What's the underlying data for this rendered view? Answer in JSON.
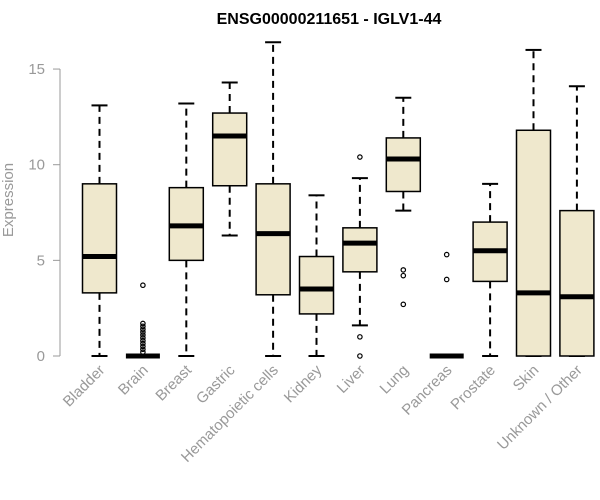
{
  "chart_data": {
    "type": "box",
    "title": "ENSG00000211651 - IGLV1-44",
    "ylabel": "Expression",
    "xlabel": "",
    "ylim": [
      0,
      15
    ],
    "yticks": [
      0,
      5,
      10,
      15
    ],
    "grid": false,
    "box_fill": "#EFE8CD",
    "categories": [
      "Bladder",
      "Brain",
      "Breast",
      "Gastric",
      "Hematopoietic cells",
      "Kidney",
      "Liver",
      "Lung",
      "Pancreas",
      "Prostate",
      "Skin",
      "Unknown / Other"
    ],
    "boxes": [
      {
        "category": "Bladder",
        "whisker_low": 0,
        "q1": 3.3,
        "median": 5.2,
        "q3": 9.0,
        "whisker_high": 13.1,
        "outliers": []
      },
      {
        "category": "Brain",
        "whisker_low": 0,
        "q1": 0,
        "median": 0,
        "q3": 0,
        "whisker_high": 0,
        "outliers": [
          0.2,
          0.35,
          0.5,
          0.65,
          0.8,
          0.95,
          1.1,
          1.25,
          1.4,
          1.55,
          1.7,
          3.7
        ]
      },
      {
        "category": "Breast",
        "whisker_low": 0,
        "q1": 5.0,
        "median": 6.8,
        "q3": 8.8,
        "whisker_high": 13.2,
        "outliers": []
      },
      {
        "category": "Gastric",
        "whisker_low": 6.3,
        "q1": 8.9,
        "median": 11.5,
        "q3": 12.7,
        "whisker_high": 14.3,
        "outliers": []
      },
      {
        "category": "Hematopoietic cells",
        "whisker_low": 0,
        "q1": 3.2,
        "median": 6.4,
        "q3": 9.0,
        "whisker_high": 16.4,
        "outliers": []
      },
      {
        "category": "Kidney",
        "whisker_low": 0,
        "q1": 2.2,
        "median": 3.5,
        "q3": 5.2,
        "whisker_high": 8.4,
        "outliers": []
      },
      {
        "category": "Liver",
        "whisker_low": 1.6,
        "q1": 4.4,
        "median": 5.9,
        "q3": 6.7,
        "whisker_high": 9.3,
        "outliers": [
          10.4,
          1.0,
          0.0
        ]
      },
      {
        "category": "Lung",
        "whisker_low": 7.6,
        "q1": 8.6,
        "median": 10.3,
        "q3": 11.4,
        "whisker_high": 13.5,
        "outliers": [
          4.5,
          4.2,
          2.7
        ]
      },
      {
        "category": "Pancreas",
        "whisker_low": 0,
        "q1": 0,
        "median": 0,
        "q3": 0,
        "whisker_high": 0,
        "outliers": [
          5.3,
          4.0
        ]
      },
      {
        "category": "Prostate",
        "whisker_low": 0,
        "q1": 3.9,
        "median": 5.5,
        "q3": 7.0,
        "whisker_high": 9.0,
        "outliers": []
      },
      {
        "category": "Skin",
        "whisker_low": 0,
        "q1": 0,
        "median": 3.3,
        "q3": 11.8,
        "whisker_high": 16.0,
        "outliers": []
      },
      {
        "category": "Unknown / Other",
        "whisker_low": 0,
        "q1": 0,
        "median": 3.1,
        "q3": 7.6,
        "whisker_high": 14.1,
        "outliers": []
      }
    ]
  }
}
